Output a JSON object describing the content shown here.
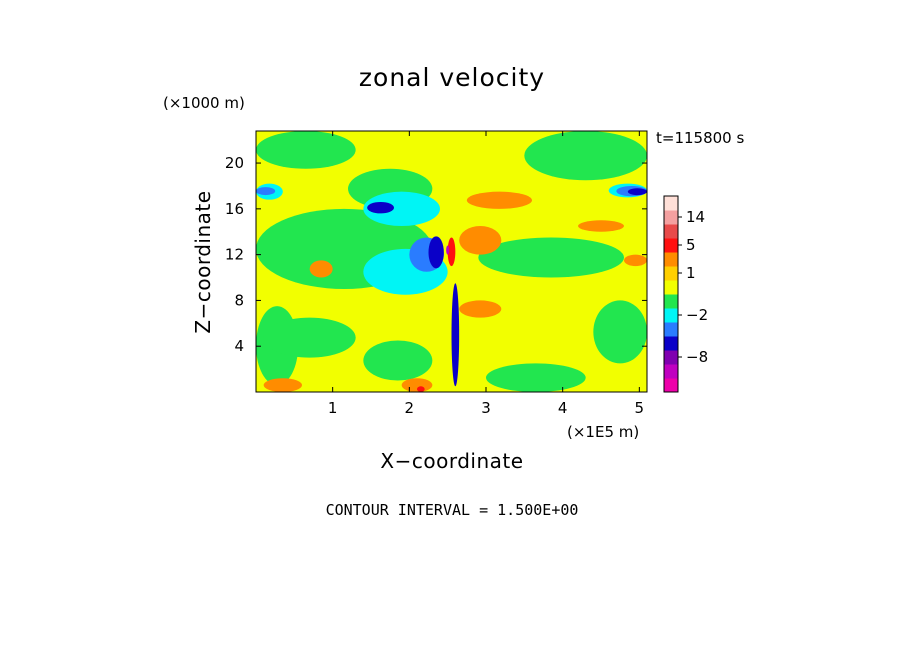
{
  "chart_data": {
    "type": "heatmap",
    "title": "zonal velocity",
    "xlabel": "X−coordinate",
    "ylabel": "Z−coordinate",
    "x_scale_label": "(×1E5 m)",
    "y_scale_label": "(×1000 m)",
    "time_label": "t=115800 s",
    "footer": "CONTOUR INTERVAL = 1.500E+00",
    "xlim": [
      0,
      5.1
    ],
    "ylim": [
      0,
      22.8
    ],
    "x_ticks": [
      1,
      2,
      3,
      4,
      5
    ],
    "x_tick_labels": [
      "1",
      "2",
      "3",
      "4",
      "5"
    ],
    "y_ticks": [
      4,
      8,
      12,
      16,
      20
    ],
    "y_tick_labels": [
      "4",
      "8",
      "12",
      "16",
      "20"
    ],
    "background_level_color": "#f2ff00",
    "regions": [
      {
        "color": "#22e64f",
        "x": [
          0.0,
          0.55
        ],
        "y": [
          0.6,
          7.5
        ]
      },
      {
        "color": "#22e64f",
        "x": [
          0.1,
          1.3
        ],
        "y": [
          3.0,
          6.5
        ]
      },
      {
        "color": "#22e64f",
        "x": [
          0.0,
          2.3
        ],
        "y": [
          9.0,
          16.0
        ]
      },
      {
        "color": "#22e64f",
        "x": [
          1.2,
          2.3
        ],
        "y": [
          16.0,
          19.5
        ]
      },
      {
        "color": "#22e64f",
        "x": [
          0.0,
          1.3
        ],
        "y": [
          19.5,
          22.8
        ]
      },
      {
        "color": "#22e64f",
        "x": [
          3.5,
          5.1
        ],
        "y": [
          18.5,
          22.8
        ]
      },
      {
        "color": "#22e64f",
        "x": [
          2.9,
          4.8
        ],
        "y": [
          10.0,
          13.5
        ]
      },
      {
        "color": "#22e64f",
        "x": [
          3.0,
          4.3
        ],
        "y": [
          0.0,
          2.5
        ]
      },
      {
        "color": "#22e64f",
        "x": [
          4.4,
          5.1
        ],
        "y": [
          2.5,
          8.0
        ]
      },
      {
        "color": "#22e64f",
        "x": [
          1.4,
          2.3
        ],
        "y": [
          1.0,
          4.5
        ]
      },
      {
        "color": "#00f5f5",
        "x": [
          0.0,
          0.35
        ],
        "y": [
          16.8,
          18.2
        ]
      },
      {
        "color": "#00f5f5",
        "x": [
          1.4,
          2.4
        ],
        "y": [
          14.5,
          17.5
        ]
      },
      {
        "color": "#00f5f5",
        "x": [
          1.4,
          2.5
        ],
        "y": [
          8.5,
          12.5
        ]
      },
      {
        "color": "#00f5f5",
        "x": [
          4.6,
          5.1
        ],
        "y": [
          17.0,
          18.2
        ]
      },
      {
        "color": "#2a7cff",
        "x": [
          0.0,
          0.25
        ],
        "y": [
          17.2,
          17.9
        ]
      },
      {
        "color": "#2a7cff",
        "x": [
          2.0,
          2.45
        ],
        "y": [
          10.5,
          13.5
        ]
      },
      {
        "color": "#2a7cff",
        "x": [
          4.7,
          5.1
        ],
        "y": [
          17.1,
          18.0
        ]
      },
      {
        "color": "#0a00c8",
        "x": [
          2.25,
          2.45
        ],
        "y": [
          10.8,
          13.6
        ]
      },
      {
        "color": "#0a00c8",
        "x": [
          1.45,
          1.8
        ],
        "y": [
          15.6,
          16.6
        ]
      },
      {
        "color": "#0a00c8",
        "x": [
          4.85,
          5.1
        ],
        "y": [
          17.2,
          17.8
        ]
      },
      {
        "color": "#0a00c8",
        "x": [
          2.55,
          2.65
        ],
        "y": [
          0.5,
          9.5
        ]
      },
      {
        "color": "#ff8c00",
        "x": [
          0.1,
          0.6
        ],
        "y": [
          0.0,
          1.2
        ]
      },
      {
        "color": "#ff8c00",
        "x": [
          0.7,
          1.0
        ],
        "y": [
          10.0,
          11.5
        ]
      },
      {
        "color": "#ff8c00",
        "x": [
          1.9,
          2.3
        ],
        "y": [
          0.0,
          1.2
        ]
      },
      {
        "color": "#ff8c00",
        "x": [
          2.75,
          3.6
        ],
        "y": [
          16.0,
          17.5
        ]
      },
      {
        "color": "#ff8c00",
        "x": [
          2.65,
          3.2
        ],
        "y": [
          12.0,
          14.5
        ]
      },
      {
        "color": "#ff8c00",
        "x": [
          2.65,
          3.2
        ],
        "y": [
          6.5,
          8.0
        ]
      },
      {
        "color": "#ff8c00",
        "x": [
          4.2,
          4.8
        ],
        "y": [
          14.0,
          15.0
        ]
      },
      {
        "color": "#ff8c00",
        "x": [
          4.8,
          5.1
        ],
        "y": [
          11.0,
          12.0
        ]
      },
      {
        "color": "#ff1010",
        "x": [
          2.5,
          2.6
        ],
        "y": [
          11.0,
          13.5
        ]
      },
      {
        "color": "#ff1010",
        "x": [
          2.1,
          2.2
        ],
        "y": [
          0.0,
          0.5
        ]
      },
      {
        "color": "#c000c0",
        "x": [
          2.48,
          2.52
        ],
        "y": [
          12.0,
          12.8
        ]
      }
    ],
    "colorbar": {
      "levels": [
        {
          "color": "#ee00aa"
        },
        {
          "color": "#c000c0"
        },
        {
          "color": "#8000b0"
        },
        {
          "color": "#0a00c8"
        },
        {
          "color": "#2a7cff"
        },
        {
          "color": "#00f5f5"
        },
        {
          "color": "#22e64f"
        },
        {
          "color": "#f2ff00"
        },
        {
          "color": "#ffcf00"
        },
        {
          "color": "#ff8c00"
        },
        {
          "color": "#ff1010"
        },
        {
          "color": "#e84a4a"
        },
        {
          "color": "#f4a0a0"
        },
        {
          "color": "#ffe0d8"
        }
      ],
      "tick_labels": [
        "14",
        "5",
        "1",
        "−2",
        "−8"
      ]
    }
  }
}
